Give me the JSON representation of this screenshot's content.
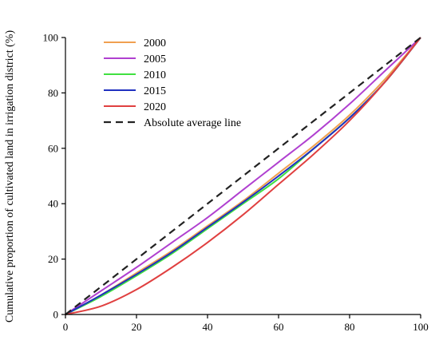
{
  "chart_data": {
    "type": "line",
    "ylabel": "Cumulative proportion of cultivated land in irrigation district (%)",
    "xlabel": "",
    "xlim": [
      0,
      100
    ],
    "ylim": [
      0,
      100
    ],
    "xticks": [
      0,
      20,
      40,
      60,
      80,
      100
    ],
    "yticks": [
      0,
      20,
      40,
      60,
      80,
      100
    ],
    "grid": false,
    "legend_position": "top-left",
    "x": [
      0,
      10,
      20,
      30,
      40,
      50,
      60,
      70,
      80,
      90,
      100
    ],
    "series": [
      {
        "name": "2000",
        "color": "#f0a050",
        "dashed": false,
        "values": [
          0,
          7,
          15,
          23,
          32,
          41,
          51,
          61,
          72,
          85,
          100
        ]
      },
      {
        "name": "2005",
        "color": "#b040d0",
        "dashed": false,
        "values": [
          0,
          8.5,
          17,
          26,
          35,
          45,
          55,
          65,
          76,
          88,
          100
        ]
      },
      {
        "name": "2010",
        "color": "#40e040",
        "dashed": false,
        "values": [
          0,
          6.5,
          14,
          22,
          31,
          40,
          49,
          60,
          71,
          84,
          100
        ]
      },
      {
        "name": "2015",
        "color": "#2030c0",
        "dashed": false,
        "values": [
          0,
          7,
          14.5,
          22.5,
          31.5,
          40.5,
          50,
          60,
          71,
          84,
          100
        ]
      },
      {
        "name": "2020",
        "color": "#e04040",
        "dashed": false,
        "values": [
          0,
          3,
          9,
          17,
          26,
          36,
          47,
          58,
          70,
          84,
          100
        ]
      },
      {
        "name": "Absolute average line",
        "color": "#222222",
        "dashed": true,
        "values": [
          0,
          10,
          20,
          30,
          40,
          50,
          60,
          70,
          80,
          90,
          100
        ]
      }
    ]
  }
}
